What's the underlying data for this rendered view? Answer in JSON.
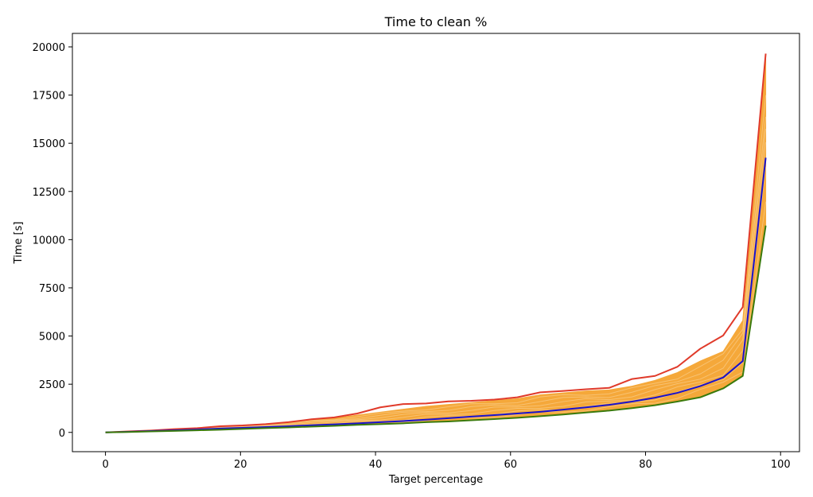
{
  "chart_data": {
    "type": "line",
    "title": "Time to clean %",
    "xlabel": "Target percentage",
    "ylabel": "Time [s]",
    "xlim": [
      -4.9,
      102.8
    ],
    "ylim": [
      -1000,
      20700
    ],
    "xticks": [
      0,
      20,
      40,
      60,
      80,
      100
    ],
    "yticks": [
      0,
      2500,
      5000,
      7500,
      10000,
      12500,
      15000,
      17500,
      20000
    ],
    "x": [
      0,
      3.4,
      6.8,
      10.2,
      13.6,
      17.0,
      20.3,
      23.7,
      27.1,
      30.5,
      33.9,
      37.3,
      40.7,
      44.1,
      47.5,
      50.8,
      54.2,
      57.6,
      61.0,
      64.4,
      67.8,
      71.2,
      74.6,
      78.0,
      81.4,
      84.7,
      88.1,
      91.5,
      94.4,
      97.8
    ],
    "band": {
      "color": "#f5a83a",
      "lower": [
        0,
        20,
        50,
        80,
        110,
        140,
        180,
        220,
        260,
        300,
        340,
        390,
        430,
        470,
        520,
        570,
        630,
        690,
        760,
        840,
        930,
        1030,
        1130,
        1260,
        1410,
        1600,
        1820,
        2300,
        2950,
        10700
      ],
      "upper": [
        0,
        40,
        100,
        160,
        220,
        300,
        370,
        440,
        520,
        650,
        740,
        900,
        1050,
        1200,
        1350,
        1450,
        1550,
        1650,
        1750,
        1950,
        2050,
        2150,
        2200,
        2400,
        2700,
        3100,
        3700,
        4200,
        5800,
        19400
      ]
    },
    "series": [
      {
        "color": "#e03a2a",
        "values": [
          0,
          50,
          100,
          170,
          220,
          320,
          360,
          430,
          530,
          680,
          780,
          980,
          1300,
          1470,
          1500,
          1610,
          1640,
          1700,
          1820,
          2080,
          2150,
          2240,
          2310,
          2770,
          2930,
          3400,
          4340,
          5030,
          6500,
          19650
        ]
      },
      {
        "color": "#1a12cc",
        "values": [
          0,
          30,
          70,
          110,
          150,
          200,
          240,
          280,
          320,
          370,
          420,
          470,
          530,
          590,
          660,
          740,
          820,
          900,
          980,
          1070,
          1180,
          1300,
          1430,
          1600,
          1800,
          2050,
          2400,
          2850,
          3700,
          14250
        ]
      },
      {
        "color": "#3a7a0c",
        "values": [
          0,
          20,
          50,
          80,
          110,
          140,
          180,
          220,
          260,
          300,
          340,
          390,
          430,
          470,
          530,
          570,
          630,
          690,
          760,
          840,
          930,
          1030,
          1130,
          1260,
          1410,
          1600,
          1820,
          2280,
          2930,
          10730
        ]
      }
    ]
  }
}
